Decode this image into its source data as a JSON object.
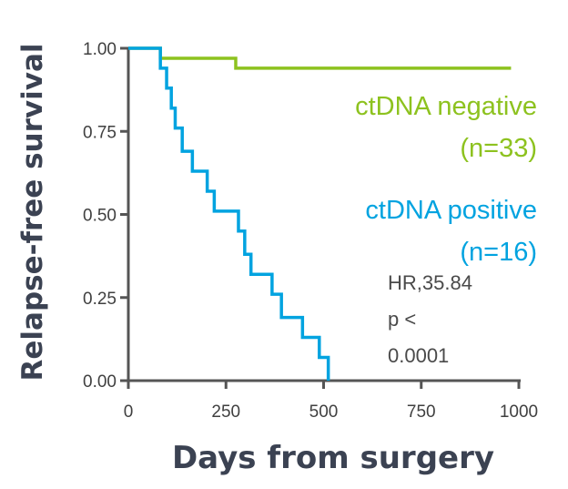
{
  "chart_data": {
    "type": "line",
    "subtype": "kaplan-meier step",
    "xlabel": "Days from surgery",
    "ylabel": "Relapse-free survival",
    "xlim": [
      0,
      1000
    ],
    "ylim": [
      0,
      1
    ],
    "xticks": [
      "0",
      "250",
      "500",
      "750",
      "1000"
    ],
    "yticks": [
      "0.00",
      "0.25",
      "0.50",
      "0.75",
      "1.00"
    ],
    "grid": false,
    "series": [
      {
        "name": "ctDNA negative",
        "n_label": "(n=33)",
        "color": "#8dc21f",
        "x": [
          0,
          82,
          275,
          980
        ],
        "y": [
          1.0,
          0.97,
          0.94,
          0.94
        ]
      },
      {
        "name": "ctDNA positive",
        "n_label": "(n=16)",
        "color": "#00a3e0",
        "x": [
          0,
          82,
          98,
          110,
          120,
          138,
          164,
          202,
          220,
          282,
          298,
          314,
          368,
          392,
          446,
          489,
          512
        ],
        "y": [
          1.0,
          0.94,
          0.88,
          0.82,
          0.76,
          0.69,
          0.63,
          0.57,
          0.51,
          0.45,
          0.38,
          0.32,
          0.26,
          0.19,
          0.13,
          0.07,
          0.0
        ]
      }
    ],
    "annotation": [
      "HR,35.84",
      "p <",
      "0.0001"
    ]
  }
}
